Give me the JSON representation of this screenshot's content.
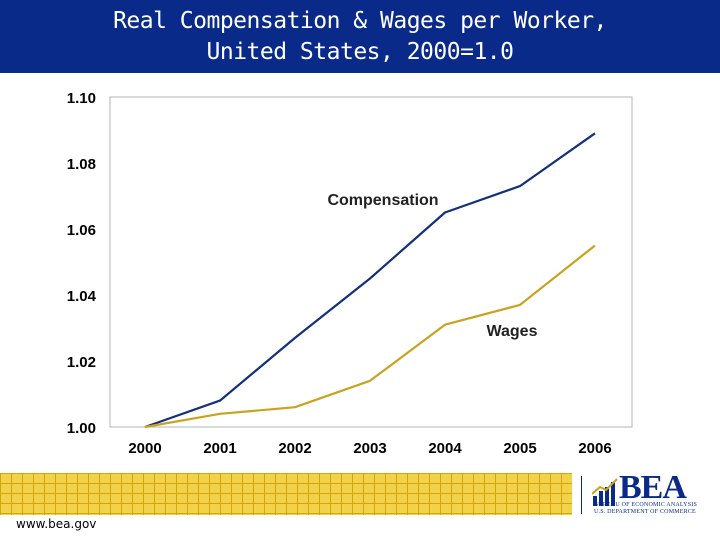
{
  "header": {
    "title_line1": "Real Compensation & Wages per Worker,",
    "title_line2": "United States, 2000=1.0"
  },
  "chart_data": {
    "type": "line",
    "x": [
      2000,
      2001,
      2002,
      2003,
      2004,
      2005,
      2006
    ],
    "ylim": [
      1.0,
      1.1
    ],
    "y_ticks": [
      "1.00",
      "1.02",
      "1.04",
      "1.06",
      "1.08",
      "1.10"
    ],
    "x_ticks": [
      "2000",
      "2001",
      "2002",
      "2003",
      "2004",
      "2005",
      "2006"
    ],
    "grid": false,
    "series": [
      {
        "name": "Compensation",
        "color": "#13307a",
        "values": [
          1.0,
          1.008,
          1.027,
          1.045,
          1.065,
          1.073,
          1.089
        ]
      },
      {
        "name": "Wages",
        "color": "#c9a320",
        "values": [
          1.0,
          1.004,
          1.006,
          1.014,
          1.031,
          1.037,
          1.055
        ]
      }
    ]
  },
  "footer": {
    "url": "www.bea.gov",
    "logo_text": "BEA",
    "logo_sub1": "BUREAU OF ECONOMIC ANALYSIS",
    "logo_sub2": "U.S. DEPARTMENT OF COMMERCE",
    "accent_color": "#0a2a8a",
    "band_color": "#f2d24a"
  }
}
